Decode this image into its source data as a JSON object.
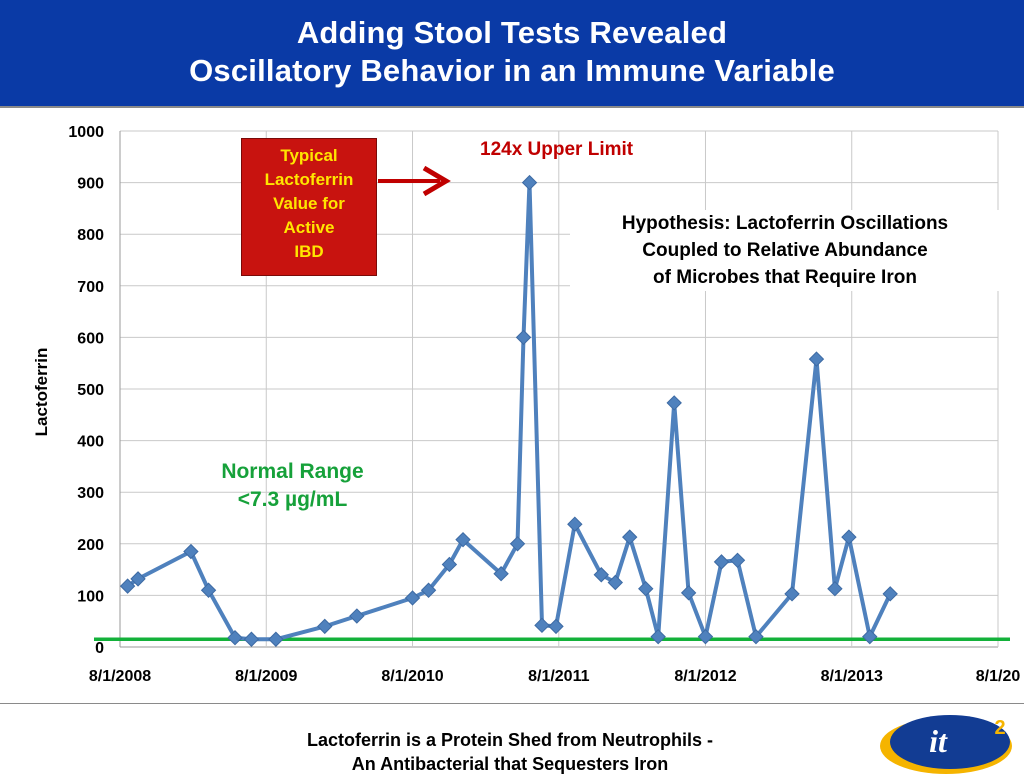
{
  "header": {
    "title_line1": "Adding Stool Tests Revealed",
    "title_line2": "Oscillatory Behavior in an Immune Variable",
    "background_color": "#0a3aa6"
  },
  "annotations": {
    "typical_box": [
      "Typical",
      "Lactoferrin",
      "Value for",
      "Active",
      "IBD"
    ],
    "upper_limit": "124x Upper Limit",
    "hypothesis": [
      "Hypothesis: Lactoferrin Oscillations",
      "Coupled to Relative Abundance",
      "of Microbes that Require Iron"
    ],
    "normal_range": [
      "Normal Range",
      "<7.3 µg/mL"
    ]
  },
  "footer": {
    "line1": "Lactoferrin is a Protein Shed from Neutrophils -",
    "line2": "An Antibacterial that Sequesters Iron"
  },
  "logo": {
    "text": "it",
    "superscript": "2"
  },
  "chart_data": {
    "type": "line",
    "title": "",
    "xlabel": "",
    "ylabel": "Lactoferrin",
    "ylim": [
      0,
      1000
    ],
    "yticks": [
      0,
      100,
      200,
      300,
      400,
      500,
      600,
      700,
      800,
      900,
      1000
    ],
    "xlim": [
      "2008-08-01",
      "2014-08-01"
    ],
    "xtick_labels": [
      "8/1/2008",
      "8/1/2009",
      "8/1/2010",
      "8/1/2011",
      "8/1/2012",
      "8/1/2013",
      "8/1/20"
    ],
    "grid": true,
    "series": [
      {
        "color": "#4f81bd",
        "marker": "diamond",
        "points": [
          {
            "x": "2008-08-20",
            "y": 118
          },
          {
            "x": "2008-09-15",
            "y": 132
          },
          {
            "x": "2009-01-25",
            "y": 185
          },
          {
            "x": "2009-03-10",
            "y": 110
          },
          {
            "x": "2009-05-15",
            "y": 18
          },
          {
            "x": "2009-06-25",
            "y": 15
          },
          {
            "x": "2009-08-25",
            "y": 15
          },
          {
            "x": "2009-12-25",
            "y": 40
          },
          {
            "x": "2010-03-15",
            "y": 60
          },
          {
            "x": "2010-08-01",
            "y": 95
          },
          {
            "x": "2010-09-10",
            "y": 110
          },
          {
            "x": "2010-11-01",
            "y": 160
          },
          {
            "x": "2010-12-05",
            "y": 208
          },
          {
            "x": "2011-03-10",
            "y": 142
          },
          {
            "x": "2011-04-20",
            "y": 200
          },
          {
            "x": "2011-05-05",
            "y": 600
          },
          {
            "x": "2011-05-20",
            "y": 900
          },
          {
            "x": "2011-06-20",
            "y": 42
          },
          {
            "x": "2011-07-25",
            "y": 40
          },
          {
            "x": "2011-09-10",
            "y": 238
          },
          {
            "x": "2011-11-15",
            "y": 140
          },
          {
            "x": "2011-12-20",
            "y": 125
          },
          {
            "x": "2012-01-25",
            "y": 213
          },
          {
            "x": "2012-03-05",
            "y": 113
          },
          {
            "x": "2012-04-05",
            "y": 20
          },
          {
            "x": "2012-05-15",
            "y": 473
          },
          {
            "x": "2012-06-20",
            "y": 105
          },
          {
            "x": "2012-08-01",
            "y": 20
          },
          {
            "x": "2012-09-10",
            "y": 165
          },
          {
            "x": "2012-10-20",
            "y": 168
          },
          {
            "x": "2012-12-05",
            "y": 20
          },
          {
            "x": "2013-03-05",
            "y": 103
          },
          {
            "x": "2013-05-05",
            "y": 558
          },
          {
            "x": "2013-06-20",
            "y": 113
          },
          {
            "x": "2013-07-25",
            "y": 213
          },
          {
            "x": "2013-09-15",
            "y": 20
          },
          {
            "x": "2013-11-05",
            "y": 103
          }
        ]
      }
    ],
    "reference_line": {
      "y": 15,
      "color": "#13b13a"
    }
  }
}
